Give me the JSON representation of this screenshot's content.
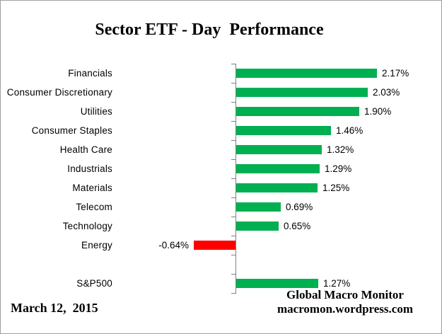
{
  "title": "Sector ETF - Day  Performance",
  "footer": {
    "date": "March 12,  2015",
    "brand_line1": "Global Macro Monitor",
    "brand_line2": "macromon.wordpress.com"
  },
  "colors": {
    "positive_bar": "#00B050",
    "negative_bar": "#FF0000",
    "axis": "#808080",
    "frame": "#A0A0A0",
    "text": "#000000"
  },
  "chart_data": {
    "type": "bar",
    "orientation": "horizontal",
    "title": "Sector ETF - Day  Performance",
    "xlabel": "",
    "ylabel": "",
    "value_unit": "percent",
    "axis_tick_labels_visible": false,
    "grid": false,
    "legend": false,
    "approx_xlim": [
      -0.75,
      2.75
    ],
    "rows": [
      {
        "category": "Financials",
        "value": 2.17,
        "label": "2.17%"
      },
      {
        "category": "Consumer Discretionary",
        "value": 2.03,
        "label": "2.03%"
      },
      {
        "category": "Utilities",
        "value": 1.9,
        "label": "1.90%"
      },
      {
        "category": "Consumer Staples",
        "value": 1.46,
        "label": "1.46%"
      },
      {
        "category": "Health Care",
        "value": 1.32,
        "label": "1.32%"
      },
      {
        "category": "Industrials",
        "value": 1.29,
        "label": "1.29%"
      },
      {
        "category": "Materials",
        "value": 1.25,
        "label": "1.25%"
      },
      {
        "category": "Telecom",
        "value": 0.69,
        "label": "0.69%"
      },
      {
        "category": "Technology",
        "value": 0.65,
        "label": "0.65%"
      },
      {
        "category": "Energy",
        "value": -0.64,
        "label": "-0.64%"
      },
      {
        "category": "",
        "value": null,
        "label": "",
        "spacer": true
      },
      {
        "category": "S&P500",
        "value": 1.27,
        "label": "1.27%"
      }
    ]
  }
}
